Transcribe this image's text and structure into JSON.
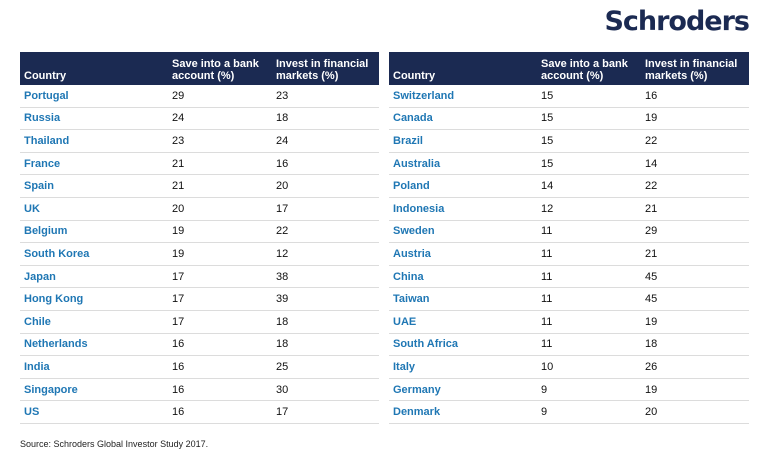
{
  "brand": {
    "logo_text": "Schroders",
    "color": "#1b2a52",
    "accent": "#1f77b4"
  },
  "headers": {
    "country": "Country",
    "save": "Save into a bank account (%)",
    "invest": "Invest in financial markets (%)"
  },
  "left_table": [
    {
      "country": "Portugal",
      "save": "29",
      "invest": "23"
    },
    {
      "country": "Russia",
      "save": "24",
      "invest": "18"
    },
    {
      "country": "Thailand",
      "save": "23",
      "invest": "24"
    },
    {
      "country": "France",
      "save": "21",
      "invest": "16"
    },
    {
      "country": "Spain",
      "save": "21",
      "invest": "20"
    },
    {
      "country": "UK",
      "save": "20",
      "invest": "17"
    },
    {
      "country": "Belgium",
      "save": "19",
      "invest": "22"
    },
    {
      "country": "South Korea",
      "save": "19",
      "invest": "12"
    },
    {
      "country": "Japan",
      "save": "17",
      "invest": "38"
    },
    {
      "country": "Hong Kong",
      "save": "17",
      "invest": "39"
    },
    {
      "country": "Chile",
      "save": "17",
      "invest": "18"
    },
    {
      "country": "Netherlands",
      "save": "16",
      "invest": "18"
    },
    {
      "country": "India",
      "save": "16",
      "invest": "25"
    },
    {
      "country": "Singapore",
      "save": "16",
      "invest": "30"
    },
    {
      "country": "US",
      "save": "16",
      "invest": "17"
    }
  ],
  "right_table": [
    {
      "country": "Switzerland",
      "save": "15",
      "invest": "16"
    },
    {
      "country": "Canada",
      "save": "15",
      "invest": "19"
    },
    {
      "country": "Brazil",
      "save": "15",
      "invest": "22"
    },
    {
      "country": "Australia",
      "save": "15",
      "invest": "14"
    },
    {
      "country": "Poland",
      "save": "14",
      "invest": "22"
    },
    {
      "country": "Indonesia",
      "save": "12",
      "invest": "21"
    },
    {
      "country": "Sweden",
      "save": "11",
      "invest": "29"
    },
    {
      "country": "Austria",
      "save": "11",
      "invest": "21"
    },
    {
      "country": "China",
      "save": "11",
      "invest": "45"
    },
    {
      "country": "Taiwan",
      "save": "11",
      "invest": "45"
    },
    {
      "country": "UAE",
      "save": "11",
      "invest": "19"
    },
    {
      "country": "South Africa",
      "save": "11",
      "invest": "18"
    },
    {
      "country": "Italy",
      "save": "10",
      "invest": "26"
    },
    {
      "country": "Germany",
      "save": "9",
      "invest": "19"
    },
    {
      "country": "Denmark",
      "save": "9",
      "invest": "20"
    }
  ],
  "source": "Source: Schroders Global Investor Study 2017."
}
